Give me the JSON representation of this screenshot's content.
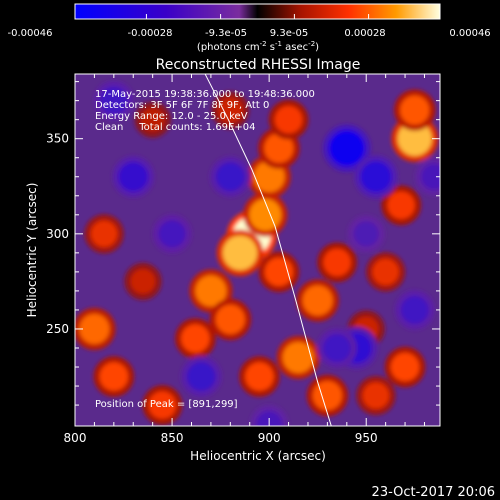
{
  "chart_data": {
    "type": "heatmap",
    "title": "Reconstructed RHESSI Image",
    "colorbar": {
      "ticks": [
        "-0.00046",
        "-0.00028",
        "-9.3e-05",
        "9.3e-05",
        "0.00028",
        "0.00046"
      ],
      "tick_values": [
        -0.00046,
        -0.00028,
        -9.3e-05,
        9.3e-05,
        0.00028,
        0.00046
      ],
      "range": [
        -0.00046,
        0.00046
      ],
      "units_main": "(photons cm",
      "units_exp1": "-2",
      "units_mid": " s",
      "units_exp2": "-1",
      "units_tail": " asec",
      "units_exp3": "-2",
      "units_close": ")"
    },
    "xlabel": "Heliocentric X (arcsec)",
    "ylabel": "Heliocentric Y (arcsec)",
    "xlim": [
      800,
      988
    ],
    "ylim": [
      199,
      384
    ],
    "xticks": [
      800,
      850,
      900,
      950
    ],
    "yticks": [
      250,
      300,
      350
    ],
    "annotations": [
      "17-May-2015 19:38:36.000 to 19:48:36.000",
      "Detectors: 3F 5F 6F 7F 8F 9F, Att 0",
      "Energy Range: 12.0 - 25.0 keV",
      "Clean     Total counts: 1.69E+04"
    ],
    "peak_label": "Position of Peak = [891,299]",
    "peak": [
      891,
      299
    ],
    "limb": [
      [
        867,
        384
      ],
      [
        879,
        360
      ],
      [
        891,
        334
      ],
      [
        903,
        304
      ],
      [
        914,
        264
      ],
      [
        925,
        222
      ],
      [
        932,
        199
      ]
    ],
    "blobs": [
      {
        "x": 891,
        "y": 299,
        "v": 0.00046
      },
      {
        "x": 885,
        "y": 290,
        "v": 0.00038
      },
      {
        "x": 898,
        "y": 310,
        "v": 0.00032
      },
      {
        "x": 900,
        "y": 330,
        "v": 0.0003
      },
      {
        "x": 905,
        "y": 345,
        "v": 0.00026
      },
      {
        "x": 910,
        "y": 360,
        "v": 0.00022
      },
      {
        "x": 870,
        "y": 270,
        "v": 0.0003
      },
      {
        "x": 880,
        "y": 255,
        "v": 0.00026
      },
      {
        "x": 862,
        "y": 245,
        "v": 0.00024
      },
      {
        "x": 905,
        "y": 280,
        "v": 0.00024
      },
      {
        "x": 925,
        "y": 265,
        "v": 0.00028
      },
      {
        "x": 935,
        "y": 285,
        "v": 0.00022
      },
      {
        "x": 960,
        "y": 280,
        "v": 0.0002
      },
      {
        "x": 915,
        "y": 235,
        "v": 0.0003
      },
      {
        "x": 930,
        "y": 215,
        "v": 0.00026
      },
      {
        "x": 895,
        "y": 225,
        "v": 0.00024
      },
      {
        "x": 975,
        "y": 350,
        "v": 0.00038
      },
      {
        "x": 975,
        "y": 365,
        "v": 0.00026
      },
      {
        "x": 968,
        "y": 315,
        "v": 0.00022
      },
      {
        "x": 970,
        "y": 230,
        "v": 0.00024
      },
      {
        "x": 955,
        "y": 215,
        "v": 0.0002
      },
      {
        "x": 810,
        "y": 250,
        "v": 0.00028
      },
      {
        "x": 815,
        "y": 300,
        "v": 0.0002
      },
      {
        "x": 820,
        "y": 225,
        "v": 0.00024
      },
      {
        "x": 845,
        "y": 210,
        "v": 0.00022
      },
      {
        "x": 835,
        "y": 275,
        "v": 0.00016
      },
      {
        "x": 950,
        "y": 250,
        "v": 0.00016
      },
      {
        "x": 880,
        "y": 365,
        "v": 0.00016
      },
      {
        "x": 840,
        "y": 360,
        "v": 0.00014
      },
      {
        "x": 850,
        "y": 300,
        "v": -0.0002
      },
      {
        "x": 830,
        "y": 330,
        "v": -0.00026
      },
      {
        "x": 820,
        "y": 370,
        "v": -0.00022
      },
      {
        "x": 940,
        "y": 345,
        "v": -0.0004
      },
      {
        "x": 955,
        "y": 330,
        "v": -0.0003
      },
      {
        "x": 880,
        "y": 330,
        "v": -0.00024
      },
      {
        "x": 945,
        "y": 240,
        "v": -0.00028
      },
      {
        "x": 935,
        "y": 240,
        "v": -0.00022
      },
      {
        "x": 865,
        "y": 225,
        "v": -0.00024
      },
      {
        "x": 900,
        "y": 200,
        "v": -0.00018
      },
      {
        "x": 975,
        "y": 260,
        "v": -0.00022
      },
      {
        "x": 950,
        "y": 300,
        "v": -0.00016
      },
      {
        "x": 985,
        "y": 330,
        "v": -0.00018
      }
    ]
  },
  "timestamp": "23-Oct-2017 20:06"
}
